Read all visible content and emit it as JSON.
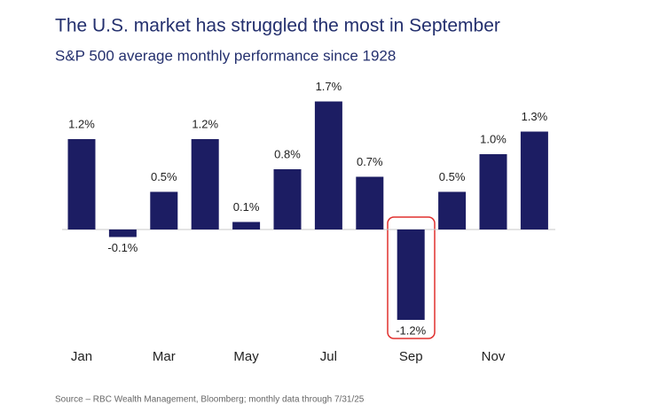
{
  "chart_data": {
    "type": "bar",
    "title": "The U.S. market has struggled the most in September",
    "subtitle": "S&P 500 average monthly performance since 1928",
    "categories": [
      "Jan",
      null,
      "Mar",
      null,
      "May",
      null,
      "Jul",
      null,
      "Sep",
      null,
      "Nov",
      null
    ],
    "values": [
      1.2,
      -0.1,
      0.5,
      1.2,
      0.1,
      0.8,
      1.7,
      0.7,
      -1.2,
      0.5,
      1.0,
      1.3
    ],
    "value_labels": [
      "1.2%",
      "-0.1%",
      "0.5%",
      "1.2%",
      "0.1%",
      "0.8%",
      "1.7%",
      "0.7%",
      "-1.2%",
      "0.5%",
      "1.0%",
      "1.3%"
    ],
    "color": "#1c1d63",
    "source": "Source – RBC Wealth Management, Bloomberg; monthly data through 7/31/25"
  }
}
